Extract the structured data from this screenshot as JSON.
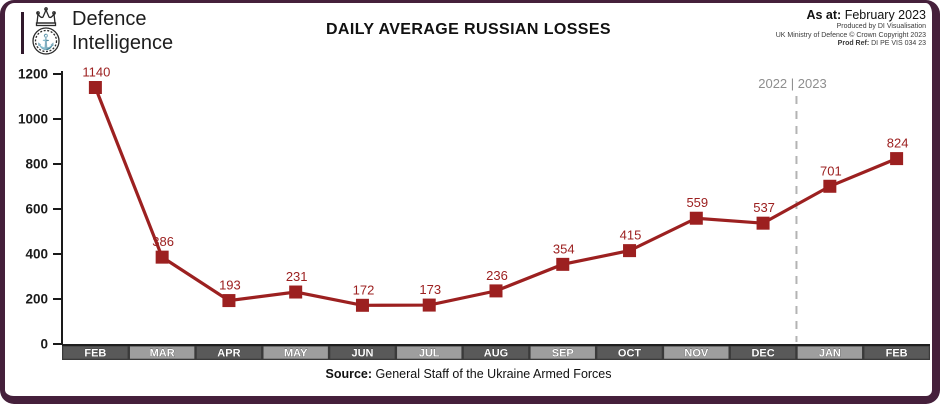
{
  "header": {
    "logo": {
      "line1": "Defence",
      "line2": "Intelligence"
    },
    "title": "DAILY AVERAGE RUSSIAN LOSSES",
    "meta": {
      "as_at_label": "As at:",
      "as_at_value": "February 2023",
      "produced_by": "Produced by DI Visualisation",
      "copyright": "UK Ministry of Defence © Crown Copyright 2023",
      "prod_ref_label": "Prod Ref:",
      "prod_ref_value": "DI PE VIS 034 23"
    }
  },
  "chart_data": {
    "type": "line",
    "title": "DAILY AVERAGE RUSSIAN LOSSES",
    "categories": [
      "FEB",
      "MAR",
      "APR",
      "MAY",
      "JUN",
      "JUL",
      "AUG",
      "SEP",
      "OCT",
      "NOV",
      "DEC",
      "JAN",
      "FEB"
    ],
    "values": [
      1140,
      386,
      193,
      231,
      172,
      173,
      236,
      354,
      415,
      559,
      537,
      701,
      824
    ],
    "xlabel": "",
    "ylabel": "",
    "ylim": [
      0,
      1200
    ],
    "yticks": [
      0,
      200,
      400,
      600,
      800,
      1000,
      1200
    ],
    "grid": false,
    "legend": false,
    "marker": "square",
    "divider": {
      "label": "2022 | 2023",
      "after_category_index": 10
    }
  },
  "footer": {
    "source_label": "Source:",
    "source_value": "General Staff of the Ukraine Armed Forces"
  },
  "colors": {
    "line": "#9c2020",
    "marker": "#9c2020",
    "value_label": "#9c2020",
    "frame": "#45203b",
    "axis": "#1a1a1a",
    "band_backing": "#3a3a3a",
    "band_dark": "#595959",
    "band_light": "#9e9e9e",
    "month_text": "#ffffff",
    "divider_line": "#b3b3b3",
    "divider_text": "#8e8e8e"
  }
}
